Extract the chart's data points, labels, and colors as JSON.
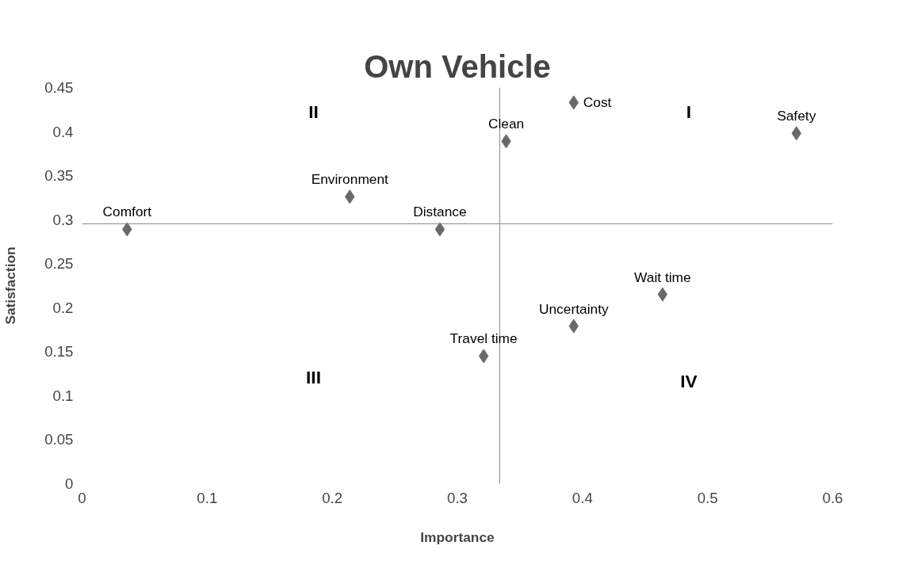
{
  "chart_data": {
    "type": "scatter",
    "title": "Own Vehicle",
    "xlabel": "Importance",
    "ylabel": "Satisfaction",
    "x": [
      0.036,
      0.214,
      0.286,
      0.321,
      0.339,
      0.393,
      0.393,
      0.464,
      0.571
    ],
    "series": [
      {
        "color": "#696969",
        "values": [
          0.289,
          0.326,
          0.289,
          0.145,
          0.389,
          0.433,
          0.179,
          0.215,
          0.398
        ]
      }
    ],
    "marker": "diamond",
    "grid": false,
    "xlim": [
      0,
      0.6
    ],
    "xticks": [
      0,
      0.1,
      0.2,
      0.3,
      0.4,
      0.5,
      0.6
    ],
    "ylim": [
      0,
      0.45
    ],
    "yticks": [
      0,
      0.05,
      0.1,
      0.15,
      0.2,
      0.25,
      0.3,
      0.35,
      0.4,
      0.45
    ],
    "ref_lines": [
      {
        "axis": "x",
        "value": 0.334,
        "color": "#8c8c8c"
      },
      {
        "axis": "y",
        "value": 0.295,
        "color": "#8c8c8c"
      }
    ],
    "annotations": [
      {
        "text": "Comfort",
        "x": 0.036,
        "y": 0.289
      },
      {
        "text": "Environment",
        "x": 0.214,
        "y": 0.326
      },
      {
        "text": "Distance",
        "x": 0.286,
        "y": 0.289
      },
      {
        "text": "Travel time",
        "x": 0.321,
        "y": 0.145
      },
      {
        "text": "Clean",
        "x": 0.339,
        "y": 0.389
      },
      {
        "text": "Cost",
        "x": 0.393,
        "y": 0.433
      },
      {
        "text": "Uncertainty",
        "x": 0.393,
        "y": 0.179
      },
      {
        "text": "Wait time",
        "x": 0.464,
        "y": 0.215
      },
      {
        "text": "Safety",
        "x": 0.571,
        "y": 0.398
      },
      "I",
      "II",
      "III",
      "IV"
    ]
  }
}
